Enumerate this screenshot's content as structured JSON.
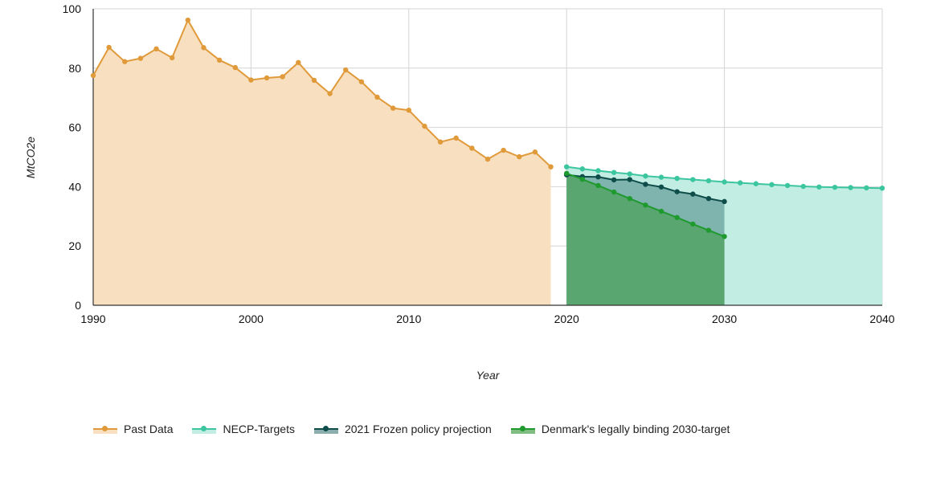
{
  "chart_data": {
    "type": "area",
    "xlabel": "Year",
    "ylabel": "MtCO2e",
    "xlim": [
      1990,
      2040
    ],
    "ylim": [
      0,
      100
    ],
    "x_ticks": [
      1990,
      2000,
      2010,
      2020,
      2030,
      2040
    ],
    "y_ticks": [
      0,
      20,
      40,
      60,
      80,
      100
    ],
    "grid": true,
    "legend_position": "bottom-left",
    "series": [
      {
        "name": "Past Data",
        "line_color": "#E09A3A",
        "fill_color": "#F7DFC0",
        "fill_opacity": 1,
        "x": [
          1990,
          1991,
          1992,
          1993,
          1994,
          1995,
          1996,
          1997,
          1998,
          1999,
          2000,
          2001,
          2002,
          2003,
          2004,
          2005,
          2006,
          2007,
          2008,
          2009,
          2010,
          2011,
          2012,
          2013,
          2014,
          2015,
          2016,
          2017,
          2018,
          2019
        ],
        "y": [
          77.5,
          87,
          82.2,
          83.3,
          86.5,
          83.5,
          96.2,
          86.9,
          82.7,
          80.2,
          76,
          76.7,
          77.1,
          81.9,
          75.9,
          71.4,
          79.4,
          75.4,
          70.2,
          66.5,
          65.8,
          60.4,
          55.1,
          56.4,
          53,
          49.3,
          52.3,
          50.1,
          51.7,
          46.7
        ]
      },
      {
        "name": "NECP-Targets",
        "line_color": "#3CC6A0",
        "fill_color": "#C2EDE3",
        "fill_opacity": 1,
        "x": [
          2020,
          2021,
          2022,
          2023,
          2024,
          2025,
          2026,
          2027,
          2028,
          2029,
          2030,
          2031,
          2032,
          2033,
          2034,
          2035,
          2036,
          2037,
          2038,
          2039,
          2040
        ],
        "y": [
          46.7,
          46,
          45.4,
          44.8,
          44.3,
          43.6,
          43.2,
          42.8,
          42.4,
          42,
          41.6,
          41.3,
          41,
          40.7,
          40.4,
          40.1,
          39.9,
          39.8,
          39.7,
          39.6,
          39.5
        ]
      },
      {
        "name": "2021 Frozen policy projection",
        "line_color": "#0F4D4A",
        "fill_color": "#2E6D6B",
        "fill_opacity": 0.45,
        "x": [
          2020,
          2021,
          2022,
          2023,
          2024,
          2025,
          2026,
          2027,
          2028,
          2029,
          2030
        ],
        "y": [
          44,
          43.4,
          43.3,
          42.3,
          42.4,
          40.8,
          39.9,
          38.3,
          37.5,
          36,
          35
        ]
      },
      {
        "name": "Denmark's legally binding 2030-target",
        "line_color": "#1E9A2E",
        "fill_color": "#3A9A3E",
        "fill_opacity": 0.55,
        "x": [
          2020,
          2021,
          2022,
          2023,
          2024,
          2025,
          2026,
          2027,
          2028,
          2029,
          2030
        ],
        "y": [
          44.5,
          42.5,
          40.4,
          38.2,
          36,
          33.8,
          31.7,
          29.6,
          27.4,
          25.3,
          23.2
        ]
      }
    ]
  }
}
